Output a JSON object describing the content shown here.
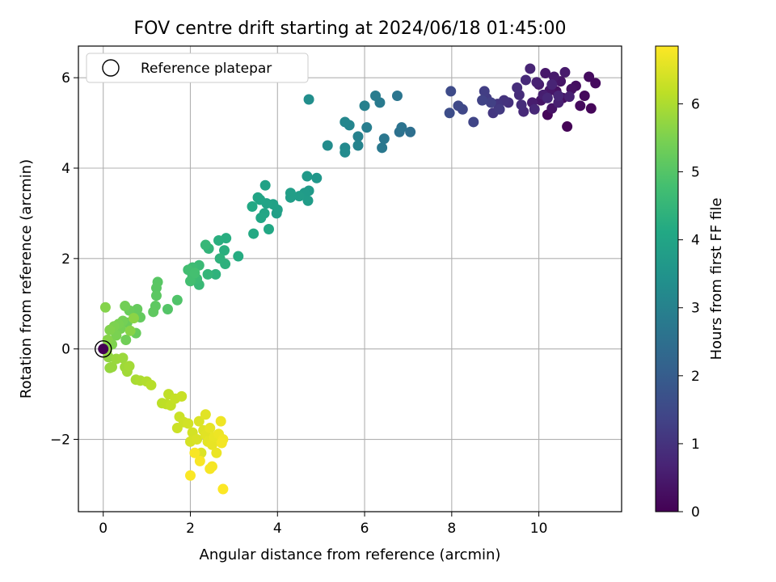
{
  "chart_data": {
    "type": "scatter",
    "title": "FOV centre drift starting at 2024/06/18 01:45:00",
    "xlabel": "Angular distance from reference (arcmin)",
    "ylabel": "Rotation from reference (arcmin)",
    "xlim": [
      -0.57,
      11.9
    ],
    "ylim": [
      -3.6,
      6.7
    ],
    "x_ticks": [
      0,
      2,
      4,
      6,
      8,
      10
    ],
    "y_ticks": [
      -2,
      0,
      2,
      4,
      6
    ],
    "x_tick_labels": [
      "0",
      "2",
      "4",
      "6",
      "8",
      "10"
    ],
    "y_tick_labels": [
      "−2",
      "0",
      "2",
      "4",
      "6"
    ],
    "grid": true,
    "legend": {
      "placement": "top-left",
      "entries": [
        "Reference platepar"
      ]
    },
    "reference_point": {
      "x": 0,
      "y": 0
    },
    "colorbar": {
      "label": "Hours from first FF file",
      "min": 0,
      "max": 6.85,
      "ticks": [
        0,
        1,
        2,
        3,
        4,
        5,
        6
      ],
      "tick_labels": [
        "0",
        "1",
        "2",
        "3",
        "4",
        "5",
        "6"
      ],
      "colormap": "viridis"
    },
    "series": [
      {
        "points": [
          [
            10.65,
            4.92,
            0.05
          ],
          [
            11.2,
            5.32,
            0.1
          ],
          [
            10.2,
            5.18,
            0.12
          ],
          [
            11.05,
            5.6,
            0.15
          ],
          [
            10.95,
            5.38,
            0.18
          ],
          [
            11.3,
            5.88,
            0.2
          ],
          [
            11.15,
            6.02,
            0.22
          ],
          [
            10.85,
            5.82,
            0.25
          ],
          [
            10.55,
            5.55,
            0.28
          ],
          [
            10.4,
            5.7,
            0.3
          ],
          [
            10.75,
            5.75,
            0.32
          ],
          [
            10.3,
            5.32,
            0.35
          ],
          [
            10.05,
            5.5,
            0.38
          ],
          [
            10.5,
            5.92,
            0.4
          ],
          [
            10.25,
            5.72,
            0.42
          ],
          [
            10.15,
            6.1,
            0.45
          ],
          [
            10.35,
            6.02,
            0.48
          ],
          [
            10.6,
            6.12,
            0.5
          ],
          [
            10.0,
            5.85,
            0.52
          ],
          [
            9.85,
            5.45,
            0.55
          ],
          [
            10.1,
            5.62,
            0.58
          ],
          [
            10.45,
            5.45,
            0.6
          ],
          [
            10.7,
            5.58,
            0.62
          ],
          [
            9.95,
            5.9,
            0.65
          ],
          [
            10.3,
            5.85,
            0.68
          ],
          [
            9.8,
            6.2,
            0.7
          ],
          [
            10.45,
            5.6,
            0.72
          ],
          [
            10.2,
            5.55,
            0.75
          ],
          [
            9.9,
            5.3,
            0.78
          ],
          [
            9.65,
            5.25,
            0.8
          ],
          [
            9.7,
            5.95,
            0.82
          ],
          [
            9.55,
            5.62,
            0.85
          ],
          [
            9.6,
            5.4,
            0.88
          ],
          [
            9.5,
            5.78,
            0.9
          ],
          [
            9.3,
            5.45,
            0.95
          ],
          [
            9.2,
            5.5,
            1.0
          ],
          [
            9.05,
            5.42,
            1.05
          ],
          [
            8.95,
            5.22,
            1.1
          ],
          [
            9.1,
            5.3,
            1.15
          ],
          [
            8.8,
            5.55,
            1.2
          ],
          [
            8.75,
            5.7,
            1.25
          ],
          [
            8.9,
            5.45,
            1.3
          ],
          [
            8.7,
            5.5,
            1.35
          ],
          [
            8.5,
            5.02,
            1.4
          ],
          [
            8.25,
            5.3,
            1.45
          ],
          [
            8.15,
            5.38,
            1.5
          ],
          [
            7.98,
            5.7,
            1.55
          ],
          [
            7.95,
            5.22,
            1.6
          ]
        ]
      },
      {
        "points": [
          [
            7.05,
            4.8,
            2.5
          ],
          [
            6.8,
            4.8,
            2.55
          ],
          [
            6.85,
            4.9,
            2.6
          ],
          [
            6.75,
            5.6,
            2.65
          ],
          [
            6.45,
            4.65,
            2.7
          ],
          [
            6.4,
            4.45,
            2.75
          ],
          [
            6.35,
            5.45,
            2.8
          ],
          [
            6.25,
            5.6,
            2.85
          ],
          [
            6.05,
            4.9,
            2.9
          ],
          [
            6.0,
            5.38,
            2.95
          ],
          [
            5.85,
            4.7,
            3.0
          ],
          [
            5.85,
            4.5,
            3.05
          ],
          [
            5.65,
            4.95,
            3.1
          ],
          [
            5.55,
            5.02,
            3.15
          ],
          [
            5.55,
            4.45,
            3.2
          ],
          [
            5.55,
            4.35,
            3.25
          ],
          [
            5.15,
            4.5,
            3.3
          ],
          [
            4.72,
            5.52,
            3.35
          ]
        ]
      },
      {
        "points": [
          [
            4.9,
            3.78,
            3.6
          ],
          [
            4.68,
            3.82,
            3.65
          ],
          [
            4.72,
            3.5,
            3.7
          ],
          [
            4.62,
            3.45,
            3.72
          ],
          [
            4.7,
            3.28,
            3.75
          ],
          [
            4.5,
            3.38,
            3.78
          ],
          [
            4.3,
            3.35,
            3.8
          ],
          [
            4.3,
            3.45,
            3.82
          ],
          [
            3.98,
            3.0,
            3.85
          ],
          [
            4.0,
            3.08,
            3.88
          ],
          [
            3.9,
            3.2,
            3.9
          ],
          [
            3.72,
            3.62,
            3.92
          ],
          [
            3.75,
            3.22,
            3.95
          ],
          [
            3.6,
            3.3,
            3.98
          ],
          [
            3.55,
            3.35,
            4.0
          ],
          [
            3.7,
            3.0,
            4.02
          ],
          [
            3.62,
            2.9,
            4.05
          ],
          [
            3.8,
            2.65,
            4.08
          ],
          [
            3.42,
            3.15,
            4.1
          ],
          [
            3.45,
            2.55,
            4.15
          ],
          [
            3.1,
            2.05,
            4.2
          ],
          [
            2.82,
            2.45,
            4.25
          ],
          [
            2.65,
            2.4,
            4.28
          ],
          [
            2.78,
            2.18,
            4.3
          ],
          [
            2.8,
            1.88,
            4.35
          ],
          [
            2.68,
            2.0,
            4.38
          ],
          [
            2.58,
            1.65,
            4.4
          ],
          [
            2.42,
            2.22,
            4.45
          ],
          [
            2.4,
            1.65,
            4.5
          ],
          [
            2.35,
            2.3,
            4.55
          ],
          [
            2.2,
            1.42,
            4.6
          ],
          [
            2.2,
            1.85,
            4.62
          ],
          [
            2.15,
            1.55,
            4.65
          ],
          [
            2.05,
            1.8,
            4.68
          ],
          [
            2.05,
            1.62,
            4.72
          ],
          [
            1.95,
            1.75,
            4.75
          ],
          [
            2.0,
            1.5,
            4.78
          ],
          [
            2.1,
            1.68,
            4.8
          ]
        ]
      },
      {
        "points": [
          [
            1.7,
            1.08,
            4.95
          ],
          [
            1.48,
            0.88,
            5.0
          ],
          [
            1.25,
            1.48,
            5.05
          ],
          [
            1.22,
            1.35,
            5.08
          ],
          [
            1.22,
            1.18,
            5.1
          ],
          [
            1.2,
            0.95,
            5.12
          ],
          [
            1.15,
            0.82,
            5.15
          ],
          [
            0.85,
            0.7,
            5.2
          ],
          [
            0.78,
            0.88,
            5.22
          ],
          [
            0.75,
            0.35,
            5.25
          ],
          [
            0.6,
            0.85,
            5.28
          ],
          [
            0.55,
            0.58,
            5.3
          ],
          [
            0.52,
            0.2,
            5.35
          ],
          [
            0.5,
            0.95,
            5.38
          ],
          [
            0.45,
            0.62,
            5.4
          ],
          [
            0.4,
            0.45,
            5.42
          ],
          [
            0.35,
            0.55,
            5.45
          ],
          [
            0.3,
            0.3,
            5.48
          ],
          [
            0.25,
            0.5,
            5.5
          ],
          [
            0.2,
            0.1,
            5.52
          ],
          [
            0.15,
            0.42,
            5.55
          ],
          [
            0.05,
            0.92,
            5.58
          ],
          [
            0.1,
            0.2,
            5.6
          ],
          [
            0.62,
            0.4,
            5.62
          ],
          [
            0.7,
            0.68,
            5.65
          ]
        ]
      },
      {
        "points": [
          [
            0.08,
            -0.05,
            5.7
          ],
          [
            0.12,
            -0.18,
            5.72
          ],
          [
            0.15,
            -0.42,
            5.75
          ],
          [
            0.2,
            -0.4,
            5.78
          ],
          [
            0.3,
            -0.22,
            5.8
          ],
          [
            0.45,
            -0.2,
            5.82
          ],
          [
            0.5,
            -0.4,
            5.85
          ],
          [
            0.55,
            -0.5,
            5.88
          ],
          [
            0.6,
            -0.38,
            5.9
          ],
          [
            0.75,
            -0.68,
            5.95
          ],
          [
            0.85,
            -0.7,
            6.0
          ],
          [
            1.0,
            -0.72,
            6.05
          ],
          [
            1.1,
            -0.8,
            6.1
          ],
          [
            1.35,
            -1.2,
            6.15
          ],
          [
            1.45,
            -1.22,
            6.18
          ],
          [
            1.5,
            -1.0,
            6.2
          ],
          [
            1.55,
            -1.25,
            6.22
          ],
          [
            1.65,
            -1.1,
            6.25
          ],
          [
            1.8,
            -1.05,
            6.28
          ],
          [
            1.75,
            -1.5,
            6.3
          ],
          [
            1.7,
            -1.75,
            6.32
          ],
          [
            1.85,
            -1.62,
            6.35
          ],
          [
            1.95,
            -1.65,
            6.38
          ],
          [
            2.05,
            -1.85,
            6.4
          ],
          [
            2.0,
            -2.05,
            6.42
          ],
          [
            2.15,
            -2.0,
            6.45
          ],
          [
            2.2,
            -1.6,
            6.48
          ],
          [
            2.25,
            -2.3,
            6.5
          ],
          [
            2.3,
            -1.8,
            6.52
          ],
          [
            2.35,
            -1.9,
            6.55
          ],
          [
            2.4,
            -2.05,
            6.58
          ],
          [
            2.45,
            -1.75,
            6.6
          ],
          [
            2.5,
            -2.12,
            6.62
          ],
          [
            2.55,
            -1.95,
            6.64
          ],
          [
            2.6,
            -2.3,
            6.66
          ],
          [
            2.65,
            -1.88,
            6.68
          ],
          [
            2.7,
            -1.6,
            6.7
          ],
          [
            2.75,
            -2.0,
            6.72
          ],
          [
            2.72,
            -2.08,
            6.74
          ],
          [
            2.5,
            -2.6,
            6.76
          ],
          [
            2.45,
            -2.65,
            6.78
          ],
          [
            2.22,
            -2.48,
            6.8
          ],
          [
            2.0,
            -2.8,
            6.82
          ],
          [
            2.75,
            -3.1,
            6.84
          ],
          [
            2.1,
            -2.3,
            6.8
          ],
          [
            2.35,
            -1.45,
            6.55
          ]
        ]
      }
    ]
  },
  "colors": {
    "grid": "#b0b0b0",
    "axes": "#000000",
    "reference_marker": "#000000"
  }
}
